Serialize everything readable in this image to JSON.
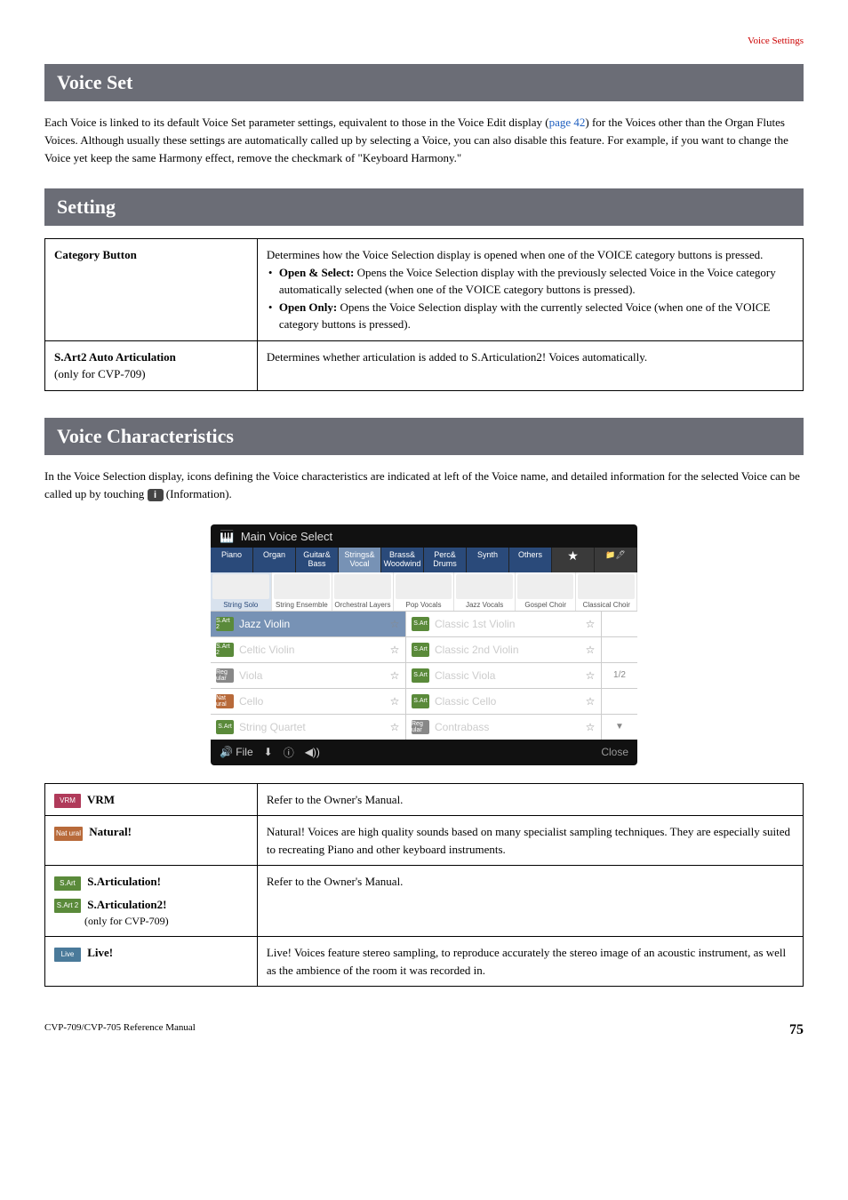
{
  "topLink": "Voice Settings",
  "sections": {
    "voiceSet": {
      "title": "Voice Set",
      "body_pre": "Each Voice is linked to its default Voice Set parameter settings, equivalent to those in the Voice Edit display (",
      "body_ref": "page 42",
      "body_post": ") for the Voices other than the Organ Flutes Voices. Although usually these settings are automatically called up by selecting a Voice, you can also disable this feature. For example, if you want to change the Voice yet keep the same Harmony effect, remove the checkmark of \"Keyboard Harmony.\""
    },
    "setting": {
      "title": "Setting",
      "rows": [
        {
          "label": "Category Button",
          "desc_intro": "Determines how the Voice Selection display is opened when one of the VOICE category buttons is pressed.",
          "bullets": [
            {
              "strong": "Open & Select:",
              "text": " Opens the Voice Selection display with the previously selected Voice in the Voice category automatically selected (when one of the VOICE category buttons is pressed)."
            },
            {
              "strong": "Open Only:",
              "text": " Opens the Voice Selection display with the currently selected Voice (when one of the VOICE category buttons is pressed)."
            }
          ]
        },
        {
          "label": "S.Art2 Auto Articulation",
          "label_sub": "(only for CVP-709)",
          "desc_intro": "Determines whether articulation is added to S.Articulation2! Voices automatically."
        }
      ]
    },
    "voiceChar": {
      "title": "Voice Characteristics",
      "intro_pre": "In the Voice Selection display, icons defining the Voice characteristics are indicated at left of the Voice name, and detailed information for the selected Voice can be called up by touching ",
      "intro_post": " (Information)."
    }
  },
  "voicePanel": {
    "title": "Main Voice Select",
    "categories": [
      "Piano",
      "Organ",
      "Guitar&\nBass",
      "Strings&\nVocal",
      "Brass&\nWoodwind",
      "Perc&\nDrums",
      "Synth",
      "Others"
    ],
    "categories_selected_index": 3,
    "star_icon": "★",
    "group_icons": "📁🖊",
    "subcategories": [
      "String Solo",
      "String Ensemble",
      "Orchestral Layers",
      "Pop Vocals",
      "Jazz Vocals",
      "Gospel Choir",
      "Classical Choir"
    ],
    "subcategories_selected_index": 0,
    "list": [
      {
        "left": {
          "badge": "S.Art 2",
          "badge_color": "#5a8a3a",
          "name": "Jazz Violin",
          "star": "☆",
          "selected": true
        },
        "right": {
          "badge": "S.Art",
          "badge_color": "#5a8a3a",
          "name": "Classic 1st Violin",
          "star": "☆"
        },
        "side": ""
      },
      {
        "left": {
          "badge": "S.Art 2",
          "badge_color": "#5a8a3a",
          "name": "Celtic Violin",
          "star": "☆"
        },
        "right": {
          "badge": "S.Art",
          "badge_color": "#5a8a3a",
          "name": "Classic 2nd Violin",
          "star": "☆"
        },
        "side": ""
      },
      {
        "left": {
          "badge": "Reg ular",
          "badge_color": "#888",
          "name": "Viola",
          "star": "☆"
        },
        "right": {
          "badge": "S.Art",
          "badge_color": "#5a8a3a",
          "name": "Classic Viola",
          "star": "☆"
        },
        "side": "1/2"
      },
      {
        "left": {
          "badge": "Nat ural",
          "badge_color": "#b86a3a",
          "name": "Cello",
          "star": "☆"
        },
        "right": {
          "badge": "S.Art",
          "badge_color": "#5a8a3a",
          "name": "Classic Cello",
          "star": "☆"
        },
        "side": ""
      },
      {
        "left": {
          "badge": "S.Art",
          "badge_color": "#5a8a3a",
          "name": "String Quartet",
          "star": "☆"
        },
        "right": {
          "badge": "Reg ular",
          "badge_color": "#888",
          "name": "Contrabass",
          "star": "☆"
        },
        "side": "▼"
      }
    ],
    "bottom": {
      "file": "File",
      "download": "⬇",
      "info": "ⓘ",
      "sound": "◀))",
      "close": "Close"
    }
  },
  "charTable": [
    {
      "badge": "VRM",
      "badge_color": "#b03a5a",
      "label": "VRM",
      "desc": "Refer to the Owner's Manual."
    },
    {
      "badge": "Nat ural",
      "badge_color": "#b86a3a",
      "label": "Natural!",
      "desc": "Natural! Voices are high quality sounds based on many specialist sampling techniques. They are especially suited to recreating Piano and other keyboard instruments."
    },
    {
      "badge": "S.Art",
      "badge_color": "#5a8a3a",
      "label": "S.Articulation!",
      "desc": "Refer to the Owner's Manual.",
      "extra": {
        "badge": "S.Art 2",
        "badge_color": "#5a8a3a",
        "label": "S.Articulation2!",
        "sub": "(only for CVP-709)"
      }
    },
    {
      "badge": "Live",
      "badge_color": "#4a7a9a",
      "label": "Live!",
      "desc": "Live! Voices feature stereo sampling, to reproduce accurately the stereo image of an acoustic instrument, as well as the ambience of the room it was recorded in."
    }
  ],
  "footer": {
    "ref": "CVP-709/CVP-705 Reference Manual",
    "page": "75"
  }
}
